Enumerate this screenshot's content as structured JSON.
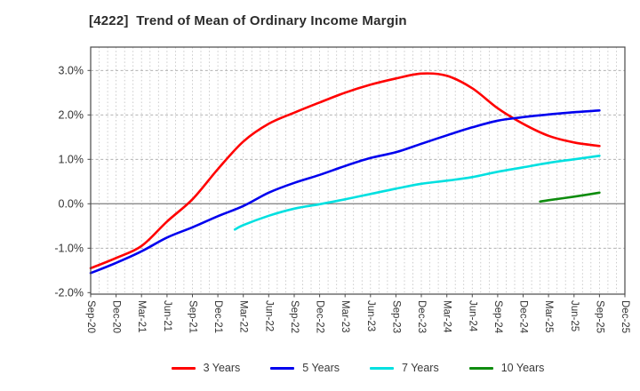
{
  "header": {
    "title": "[4222]  Trend of Mean of Ordinary Income Margin"
  },
  "chart_data": {
    "type": "line",
    "title": "[4222]  Trend of Mean of Ordinary Income Margin",
    "x_unit": "months since Sep-20",
    "x_total_months": 63,
    "x_tick_labels": [
      "Sep-20",
      "Dec-20",
      "Mar-21",
      "Jun-21",
      "Sep-21",
      "Dec-21",
      "Mar-22",
      "Jun-22",
      "Sep-22",
      "Dec-22",
      "Mar-23",
      "Jun-23",
      "Sep-23",
      "Dec-23",
      "Mar-24",
      "Jun-24",
      "Sep-24",
      "Dec-24",
      "Mar-25",
      "Jun-25",
      "Sep-25",
      "Dec-25"
    ],
    "y_tick_labels": [
      "3.0%",
      "2.0%",
      "1.0%",
      "0.0%",
      "-1.0%",
      "-2.0%"
    ],
    "y_tick_values": [
      3.0,
      2.0,
      1.0,
      0.0,
      -1.0,
      -2.0
    ],
    "y_grid_dashed": [
      3.0,
      2.0,
      1.0,
      -1.0
    ],
    "ylim": [
      -2.034,
      3.526
    ],
    "grid": {
      "vertical": "monthly-dotted",
      "horizontal": "dashed-at-1pct",
      "zero_line": "solid"
    },
    "legend_position": "bottom-center",
    "colors": {
      "red": "#ff0000",
      "blue": "#0000ee",
      "cyan": "#00e0e0",
      "green": "#0e8c0e",
      "grid_v": "#bfbfbf",
      "grid_h": "#a6a6a6",
      "zero": "#8a8a8a",
      "border": "#4a4a4a",
      "tick_text": "#333333"
    },
    "series": [
      {
        "name": "3 Years",
        "color": "#ff0000",
        "points": [
          [
            0,
            -1.45
          ],
          [
            3,
            -1.22
          ],
          [
            6,
            -0.95
          ],
          [
            9,
            -0.4
          ],
          [
            12,
            0.1
          ],
          [
            15,
            0.78
          ],
          [
            18,
            1.4
          ],
          [
            21,
            1.8
          ],
          [
            24,
            2.05
          ],
          [
            27,
            2.28
          ],
          [
            30,
            2.5
          ],
          [
            33,
            2.68
          ],
          [
            36,
            2.82
          ],
          [
            39,
            2.93
          ],
          [
            42,
            2.88
          ],
          [
            45,
            2.6
          ],
          [
            48,
            2.15
          ],
          [
            51,
            1.8
          ],
          [
            54,
            1.53
          ],
          [
            57,
            1.38
          ],
          [
            60,
            1.3
          ]
        ]
      },
      {
        "name": "5 Years",
        "color": "#0000ee",
        "points": [
          [
            0,
            -1.56
          ],
          [
            3,
            -1.33
          ],
          [
            6,
            -1.07
          ],
          [
            9,
            -0.76
          ],
          [
            12,
            -0.53
          ],
          [
            15,
            -0.28
          ],
          [
            18,
            -0.05
          ],
          [
            21,
            0.25
          ],
          [
            24,
            0.47
          ],
          [
            27,
            0.65
          ],
          [
            30,
            0.85
          ],
          [
            33,
            1.03
          ],
          [
            36,
            1.16
          ],
          [
            39,
            1.35
          ],
          [
            42,
            1.54
          ],
          [
            45,
            1.72
          ],
          [
            48,
            1.87
          ],
          [
            51,
            1.95
          ],
          [
            54,
            2.01
          ],
          [
            57,
            2.06
          ],
          [
            60,
            2.1
          ]
        ]
      },
      {
        "name": "7 Years",
        "color": "#00e0e0",
        "points": [
          [
            17,
            -0.58
          ],
          [
            18,
            -0.48
          ],
          [
            21,
            -0.27
          ],
          [
            24,
            -0.11
          ],
          [
            27,
            -0.01
          ],
          [
            30,
            0.1
          ],
          [
            33,
            0.22
          ],
          [
            36,
            0.34
          ],
          [
            39,
            0.45
          ],
          [
            42,
            0.52
          ],
          [
            45,
            0.6
          ],
          [
            48,
            0.72
          ],
          [
            51,
            0.82
          ],
          [
            54,
            0.92
          ],
          [
            57,
            1.0
          ],
          [
            60,
            1.08
          ]
        ]
      },
      {
        "name": "10 Years",
        "color": "#0e8c0e",
        "points": [
          [
            53,
            0.05
          ],
          [
            54,
            0.08
          ],
          [
            57,
            0.16
          ],
          [
            60,
            0.25
          ]
        ]
      }
    ]
  }
}
